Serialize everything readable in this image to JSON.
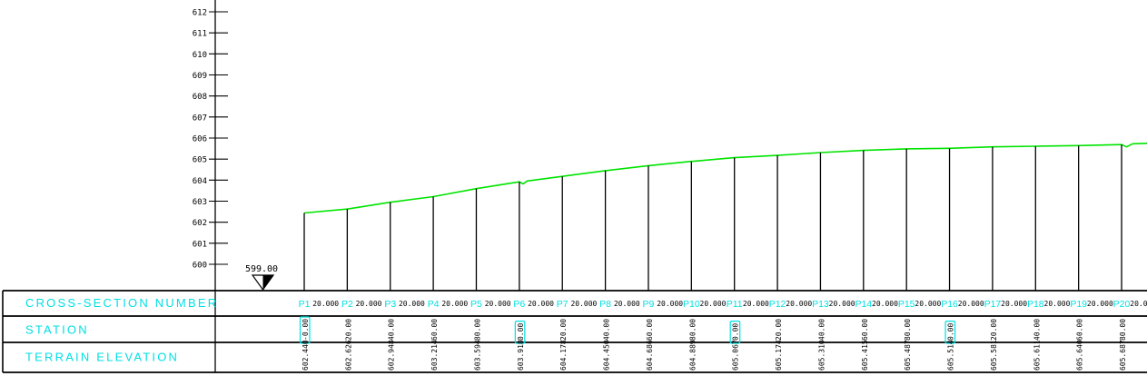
{
  "colors": {
    "cyan": "#00dfe4",
    "green": "#00e400",
    "black": "#000000",
    "background": "#ffffff"
  },
  "datum": {
    "label": "599.00"
  },
  "elevation_axis": {
    "ticks": [
      612,
      611,
      610,
      609,
      608,
      607,
      606,
      605,
      604,
      603,
      602,
      601,
      600
    ]
  },
  "table": {
    "rows": [
      {
        "label": "CROSS-SECTION NUMBER"
      },
      {
        "label": "STATION"
      },
      {
        "label": "TERRAIN ELEVATION"
      }
    ]
  },
  "chart_data": {
    "type": "line",
    "title": "",
    "ylabel": "",
    "xlabel": "",
    "ylim": [
      599,
      612.6
    ],
    "datum_elevation": 599.0,
    "spacing_label": "20.000",
    "section_spacing_m": 20.0,
    "sections": [
      {
        "name": "P1",
        "station": "-0.00",
        "elevation": "602.440",
        "highlight": true
      },
      {
        "name": "P2",
        "station": "20.00",
        "elevation": "602.626",
        "highlight": false
      },
      {
        "name": "P3",
        "station": "40.00",
        "elevation": "602.948",
        "highlight": false
      },
      {
        "name": "P4",
        "station": "60.00",
        "elevation": "603.214",
        "highlight": false
      },
      {
        "name": "P5",
        "station": "80.00",
        "elevation": "603.594",
        "highlight": false
      },
      {
        "name": "P6",
        "station": "0.00",
        "elevation": "603.918",
        "highlight": true
      },
      {
        "name": "P7",
        "station": "20.00",
        "elevation": "604.178",
        "highlight": false
      },
      {
        "name": "P8",
        "station": "40.00",
        "elevation": "604.450",
        "highlight": false
      },
      {
        "name": "P9",
        "station": "60.00",
        "elevation": "604.686",
        "highlight": false
      },
      {
        "name": "P10",
        "station": "80.00",
        "elevation": "604.889",
        "highlight": false
      },
      {
        "name": "P11",
        "station": "0.00",
        "elevation": "605.067",
        "highlight": true
      },
      {
        "name": "P12",
        "station": "20.00",
        "elevation": "605.174",
        "highlight": false
      },
      {
        "name": "P13",
        "station": "40.00",
        "elevation": "605.310",
        "highlight": false
      },
      {
        "name": "P14",
        "station": "60.00",
        "elevation": "605.415",
        "highlight": false
      },
      {
        "name": "P15",
        "station": "80.00",
        "elevation": "605.487",
        "highlight": false
      },
      {
        "name": "P16",
        "station": "0.00",
        "elevation": "605.514",
        "highlight": true
      },
      {
        "name": "P17",
        "station": "20.00",
        "elevation": "605.581",
        "highlight": false
      },
      {
        "name": "P18",
        "station": "40.00",
        "elevation": "605.611",
        "highlight": false
      },
      {
        "name": "P19",
        "station": "60.00",
        "elevation": "605.640",
        "highlight": false
      },
      {
        "name": "P20",
        "station": "80.00",
        "elevation": "605.687",
        "highlight": false
      }
    ],
    "profile_points": [
      [
        0,
        602.44
      ],
      [
        20,
        602.626
      ],
      [
        40,
        602.948
      ],
      [
        60,
        603.214
      ],
      [
        80,
        603.594
      ],
      [
        100,
        603.918
      ],
      [
        101.8,
        603.82
      ],
      [
        103.6,
        603.96
      ],
      [
        120,
        604.178
      ],
      [
        140,
        604.45
      ],
      [
        160,
        604.686
      ],
      [
        180,
        604.889
      ],
      [
        200,
        605.067
      ],
      [
        220,
        605.174
      ],
      [
        240,
        605.31
      ],
      [
        260,
        605.415
      ],
      [
        280,
        605.487
      ],
      [
        300,
        605.514
      ],
      [
        320,
        605.581
      ],
      [
        340,
        605.611
      ],
      [
        360,
        605.64
      ],
      [
        380,
        605.687
      ],
      [
        382.3,
        605.58
      ],
      [
        385.2,
        605.73
      ],
      [
        392,
        605.75
      ]
    ]
  }
}
